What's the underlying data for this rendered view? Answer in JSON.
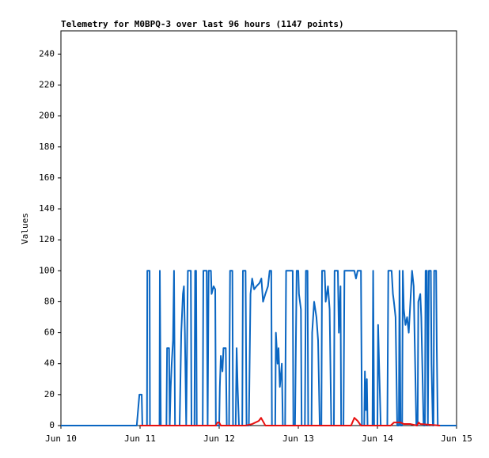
{
  "chart_data": {
    "type": "line",
    "title": "Telemetry for M0BPQ-3 over last 96 hours (1147 points)",
    "y_label": "Values",
    "xlim": [
      0,
      120
    ],
    "xticks": [
      {
        "value": 0,
        "label": "Jun 10"
      },
      {
        "value": 24,
        "label": "Jun 11"
      },
      {
        "value": 48,
        "label": "Jun 12"
      },
      {
        "value": 72,
        "label": "Jun 13"
      },
      {
        "value": 96,
        "label": "Jun 14"
      },
      {
        "value": 120,
        "label": "Jun 15"
      }
    ],
    "ylim": [
      0,
      255
    ],
    "yticks": [
      0,
      20,
      40,
      60,
      80,
      100,
      120,
      140,
      160,
      180,
      200,
      220,
      240
    ],
    "series": [
      {
        "color": "#0a66c2",
        "x": [
          0,
          23,
          23.8,
          24.5,
          24.7,
          26.1,
          26.2,
          26.9,
          27,
          29.9,
          30,
          30.3,
          32,
          32.2,
          32.8,
          33,
          33.3,
          33.6,
          34,
          34.3,
          34.6,
          36,
          36.5,
          37,
          37.3,
          37.6,
          38,
          38.5,
          39.4,
          39.6,
          40.5,
          40.7,
          41,
          41.2,
          43,
          43.2,
          44.2,
          44.5,
          44.8,
          45.5,
          45.7,
          46.3,
          46.8,
          47,
          48,
          48.2,
          48.5,
          49,
          49.3,
          50,
          50.3,
          51,
          51.3,
          52,
          52.2,
          53,
          53.3,
          53.6,
          54,
          55,
          55.2,
          56,
          56.3,
          57,
          57.5,
          58,
          58.6,
          59.3,
          60.2,
          60.8,
          61.3,
          62,
          62.8,
          63.3,
          63.8,
          64,
          65,
          65.2,
          65.7,
          66,
          66.4,
          67,
          67.3,
          68,
          68.3,
          70.3,
          70.5,
          71,
          71.5,
          72,
          72.2,
          72.8,
          73,
          74,
          74.3,
          74.8,
          75,
          76,
          76.2,
          76.8,
          77.5,
          78,
          78.5,
          79,
          79.2,
          80,
          80.3,
          81,
          81.5,
          82,
          82.8,
          83,
          84,
          84.3,
          84.8,
          85,
          85.7,
          86,
          89,
          89.5,
          90,
          91,
          91.3,
          92,
          92.2,
          92.5,
          92.8,
          93,
          94.5,
          94.7,
          95,
          96,
          96.2,
          96.5,
          97,
          99,
          99.3,
          100.3,
          100.7,
          101,
          101.5,
          102,
          102.5,
          102.7,
          103,
          103.5,
          103.7,
          104,
          104.5,
          105,
          105.5,
          106,
          106.5,
          107,
          107.3,
          107.8,
          108.2,
          108.4,
          109,
          109.3,
          110,
          110.4,
          110.6,
          111,
          111.3,
          111.6,
          112.2,
          112.4,
          112.8,
          113,
          113.2,
          113.8,
          114,
          114.3,
          120
        ],
        "values": [
          0,
          0,
          20,
          20,
          0,
          0,
          100,
          100,
          0,
          0,
          100,
          0,
          0,
          50,
          50,
          0,
          25,
          40,
          55,
          100,
          0,
          0,
          60,
          85,
          90,
          60,
          0,
          100,
          100,
          0,
          0,
          100,
          100,
          0,
          0,
          100,
          100,
          0,
          100,
          100,
          85,
          90,
          88,
          0,
          0,
          25,
          45,
          35,
          50,
          50,
          0,
          0,
          100,
          100,
          0,
          0,
          50,
          25,
          0,
          0,
          100,
          100,
          0,
          0,
          85,
          95,
          88,
          90,
          92,
          95,
          80,
          85,
          90,
          100,
          100,
          0,
          0,
          60,
          40,
          50,
          25,
          40,
          0,
          0,
          100,
          100,
          0,
          0,
          100,
          100,
          85,
          75,
          0,
          0,
          100,
          100,
          0,
          0,
          60,
          80,
          70,
          55,
          0,
          0,
          100,
          100,
          80,
          90,
          75,
          0,
          0,
          100,
          100,
          60,
          90,
          0,
          0,
          100,
          100,
          95,
          100,
          100,
          0,
          0,
          35,
          10,
          30,
          0,
          0,
          100,
          0,
          0,
          65,
          40,
          0,
          0,
          100,
          100,
          85,
          80,
          70,
          0,
          0,
          100,
          0,
          0,
          100,
          75,
          65,
          70,
          60,
          80,
          100,
          90,
          55,
          0,
          0,
          80,
          85,
          70,
          0,
          0,
          100,
          100,
          0,
          100,
          100,
          40,
          0,
          0,
          100,
          100,
          50,
          0,
          0
        ]
      },
      {
        "color": "#e8100f",
        "x": [
          24,
          47,
          47.5,
          48,
          48.5,
          56,
          58,
          60,
          60.7,
          61.5,
          62,
          64,
          86,
          88,
          89,
          90,
          91,
          92,
          100,
          101,
          103,
          104,
          106,
          108,
          108.5,
          109,
          115
        ],
        "values": [
          0,
          0,
          2,
          2,
          0,
          0,
          1,
          3,
          5,
          2,
          0,
          0,
          0,
          0,
          5,
          3,
          0,
          0,
          0,
          2,
          2,
          1,
          1,
          0,
          2,
          1,
          0
        ]
      }
    ]
  }
}
